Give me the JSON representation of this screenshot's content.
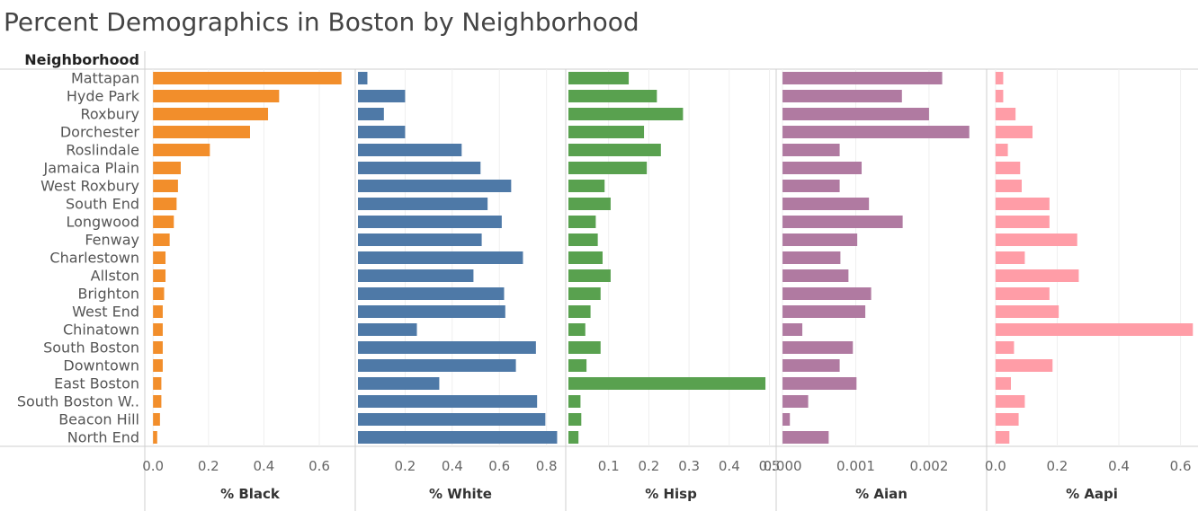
{
  "chart_data": {
    "type": "bar",
    "orientation": "horizontal",
    "title": "Percent Demographics in Boston by Neighborhood",
    "row_header": "Neighborhood",
    "categories": [
      "Mattapan",
      "Hyde Park",
      "Roxbury",
      "Dorchester",
      "Roslindale",
      "Jamaica Plain",
      "West Roxbury",
      "South End",
      "Longwood",
      "Fenway",
      "Charlestown",
      "Allston",
      "Brighton",
      "West End",
      "Chinatown",
      "South Boston",
      "Downtown",
      "East Boston",
      "South Boston W..",
      "Beacon Hill",
      "North End"
    ],
    "grid": true,
    "panels": [
      {
        "name": "% Black",
        "color": "#f28e2b",
        "xlim": [
          -0.02,
          0.72
        ],
        "ticks": [
          0.0,
          0.2,
          0.4,
          0.6
        ],
        "tick_labels": [
          "0.0",
          "0.2",
          "0.4",
          "0.6"
        ],
        "values": [
          0.68,
          0.455,
          0.415,
          0.35,
          0.205,
          0.1,
          0.09,
          0.085,
          0.075,
          0.06,
          0.045,
          0.045,
          0.04,
          0.035,
          0.035,
          0.035,
          0.035,
          0.03,
          0.03,
          0.025,
          0.015
        ]
      },
      {
        "name": "% White",
        "color": "#4e79a7",
        "xlim": [
          0.0,
          0.87
        ],
        "ticks": [
          0.2,
          0.4,
          0.6,
          0.8
        ],
        "tick_labels": [
          "0.2",
          "0.4",
          "0.6",
          "0.8"
        ],
        "values": [
          0.04,
          0.2,
          0.11,
          0.2,
          0.44,
          0.52,
          0.65,
          0.55,
          0.61,
          0.525,
          0.7,
          0.49,
          0.62,
          0.625,
          0.25,
          0.755,
          0.67,
          0.345,
          0.76,
          0.795,
          0.845
        ]
      },
      {
        "name": "% Hisp",
        "color": "#59a14f",
        "xlim": [
          0.0,
          0.51
        ],
        "ticks": [
          0.1,
          0.2,
          0.3,
          0.4,
          0.5
        ],
        "tick_labels": [
          "0.1",
          "0.2",
          "0.3",
          "0.4",
          "0.5"
        ],
        "values": [
          0.15,
          0.22,
          0.285,
          0.188,
          0.23,
          0.195,
          0.09,
          0.105,
          0.068,
          0.073,
          0.085,
          0.105,
          0.08,
          0.055,
          0.042,
          0.08,
          0.045,
          0.49,
          0.03,
          0.032,
          0.025
        ]
      },
      {
        "name": "% Aian",
        "color": "#b07aa1",
        "xlim": [
          -5e-05,
          0.00275
        ],
        "ticks": [
          0.0,
          0.001,
          0.002
        ],
        "tick_labels": [
          "0.000",
          "0.001",
          "0.002"
        ],
        "values": [
          0.00218,
          0.00163,
          0.002,
          0.00255,
          0.00078,
          0.00108,
          0.00078,
          0.00118,
          0.00164,
          0.00102,
          0.00079,
          0.0009,
          0.00121,
          0.00113,
          0.00027,
          0.00096,
          0.00078,
          0.00101,
          0.00035,
          0.0001,
          0.00063
        ]
      },
      {
        "name": "% Aapi",
        "color": "#ff9da7",
        "xlim": [
          -0.02,
          0.645
        ],
        "ticks": [
          0.0,
          0.2,
          0.4,
          0.6
        ],
        "tick_labels": [
          "0.0",
          "0.2",
          "0.4",
          "0.6"
        ],
        "values": [
          0.025,
          0.025,
          0.065,
          0.12,
          0.04,
          0.08,
          0.085,
          0.175,
          0.175,
          0.265,
          0.095,
          0.27,
          0.175,
          0.205,
          0.64,
          0.06,
          0.185,
          0.05,
          0.095,
          0.075,
          0.045
        ]
      }
    ]
  }
}
